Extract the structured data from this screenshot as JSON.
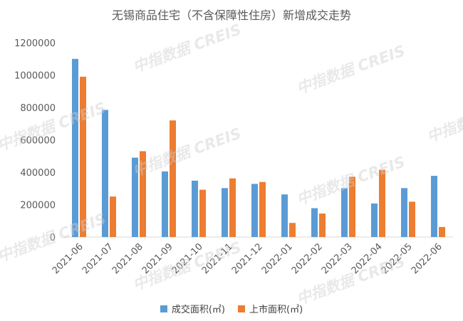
{
  "watermarks": [
    "中指数据 CREIS",
    "中指数据 CREIS",
    "中指数据 CREIS",
    "中指数据 CREIS",
    "中指数据 CREIS",
    "中指数据 CREIS",
    "中指数据 CREIS",
    "中指数据 CREIS",
    "中指数据 CREIS"
  ],
  "chart_data": {
    "type": "bar",
    "title": "无锡商品住宅（不含保障性住房）新增成交走势",
    "categories": [
      "2021-06",
      "2021-07",
      "2021-08",
      "2021-09",
      "2021-10",
      "2021-11",
      "2021-12",
      "2022-01",
      "2022-02",
      "2022-03",
      "2022-04",
      "2022-05",
      "2022-06"
    ],
    "series": [
      {
        "name": "成交面积(㎡)",
        "color": "#5b9bd5",
        "values": [
          1100000,
          785000,
          490000,
          405000,
          348000,
          302000,
          328000,
          263000,
          178000,
          302000,
          207000,
          302000,
          378000
        ]
      },
      {
        "name": "上市面积(㎡)",
        "color": "#ed7d31",
        "values": [
          990000,
          250000,
          530000,
          720000,
          292000,
          362000,
          340000,
          87000,
          145000,
          372000,
          415000,
          218000,
          62000
        ]
      }
    ],
    "yticks": [
      "0",
      "200000",
      "400000",
      "600000",
      "800000",
      "1000000",
      "1200000"
    ],
    "ylim": [
      0,
      1200000
    ],
    "grid": false,
    "legend": "bottom"
  }
}
